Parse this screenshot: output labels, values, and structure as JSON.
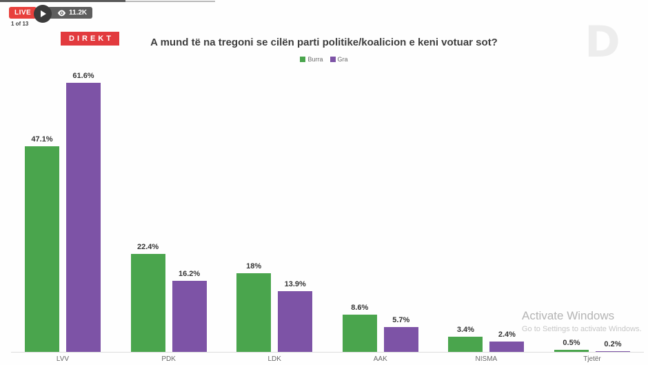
{
  "overlay": {
    "live_label": "LIVE",
    "viewer_count": "11.2K",
    "page_indicator": "1 of 13"
  },
  "direkt_label": "DIREKT",
  "channel_logo_letter": "D",
  "watermark": {
    "line1": "Activate Windows",
    "line2": "Go to Settings to activate Windows."
  },
  "chart_data": {
    "type": "bar",
    "title": "A mund të na tregoni se cilën parti politike/koalicion e keni votuar sot?",
    "categories": [
      "LVV",
      "PDK",
      "LDK",
      "AAK",
      "NISMA",
      "Tjetër"
    ],
    "series": [
      {
        "name": "Burra",
        "color": "#4aa54d",
        "values": [
          47.1,
          22.4,
          18,
          8.6,
          3.4,
          0.5
        ],
        "display": [
          "47.1%",
          "22.4%",
          "18%",
          "8.6%",
          "3.4%",
          "0.5%"
        ]
      },
      {
        "name": "Gra",
        "color": "#7d53a6",
        "values": [
          61.6,
          16.2,
          13.9,
          5.7,
          2.4,
          0.2
        ],
        "display": [
          "61.6%",
          "16.2%",
          "13.9%",
          "5.7%",
          "2.4%",
          "0.2%"
        ]
      }
    ],
    "ylim": [
      0,
      63.2
    ],
    "grid": false,
    "legend_position": "top-center",
    "xlabel": "",
    "ylabel": ""
  }
}
